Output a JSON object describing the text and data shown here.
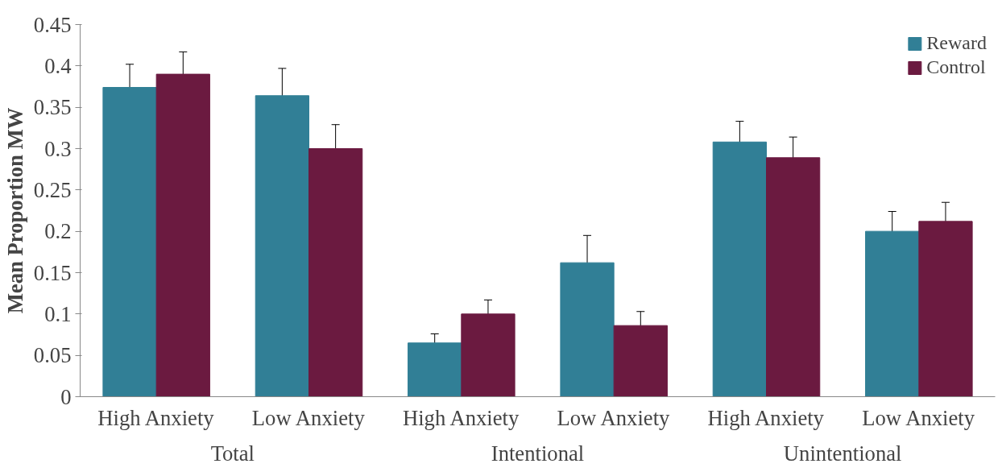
{
  "chart_data": {
    "type": "bar",
    "ylabel": "Mean Proportion MW",
    "categories": [
      "High Anxiety",
      "Low Anxiety",
      "High Anxiety",
      "Low Anxiety",
      "High Anxiety",
      "Low Anxiety"
    ],
    "annotations": [
      "Total",
      "Intentional",
      "Unintentional"
    ],
    "series": [
      {
        "name": "Reward",
        "color": "#317f96",
        "values": [
          0.374,
          0.364,
          0.065,
          0.162,
          0.308,
          0.2
        ],
        "errors": [
          0.028,
          0.033,
          0.011,
          0.033,
          0.025,
          0.024
        ]
      },
      {
        "name": "Control",
        "color": "#6b1a40",
        "values": [
          0.39,
          0.3,
          0.1,
          0.086,
          0.289,
          0.212
        ],
        "errors": [
          0.027,
          0.029,
          0.017,
          0.017,
          0.025,
          0.023
        ]
      }
    ],
    "ylim": [
      0,
      0.45
    ],
    "yticks": [
      0,
      0.05,
      0.1,
      0.15,
      0.2,
      0.25,
      0.3,
      0.35,
      0.4,
      0.45
    ],
    "grid": false,
    "legend": "top right"
  }
}
